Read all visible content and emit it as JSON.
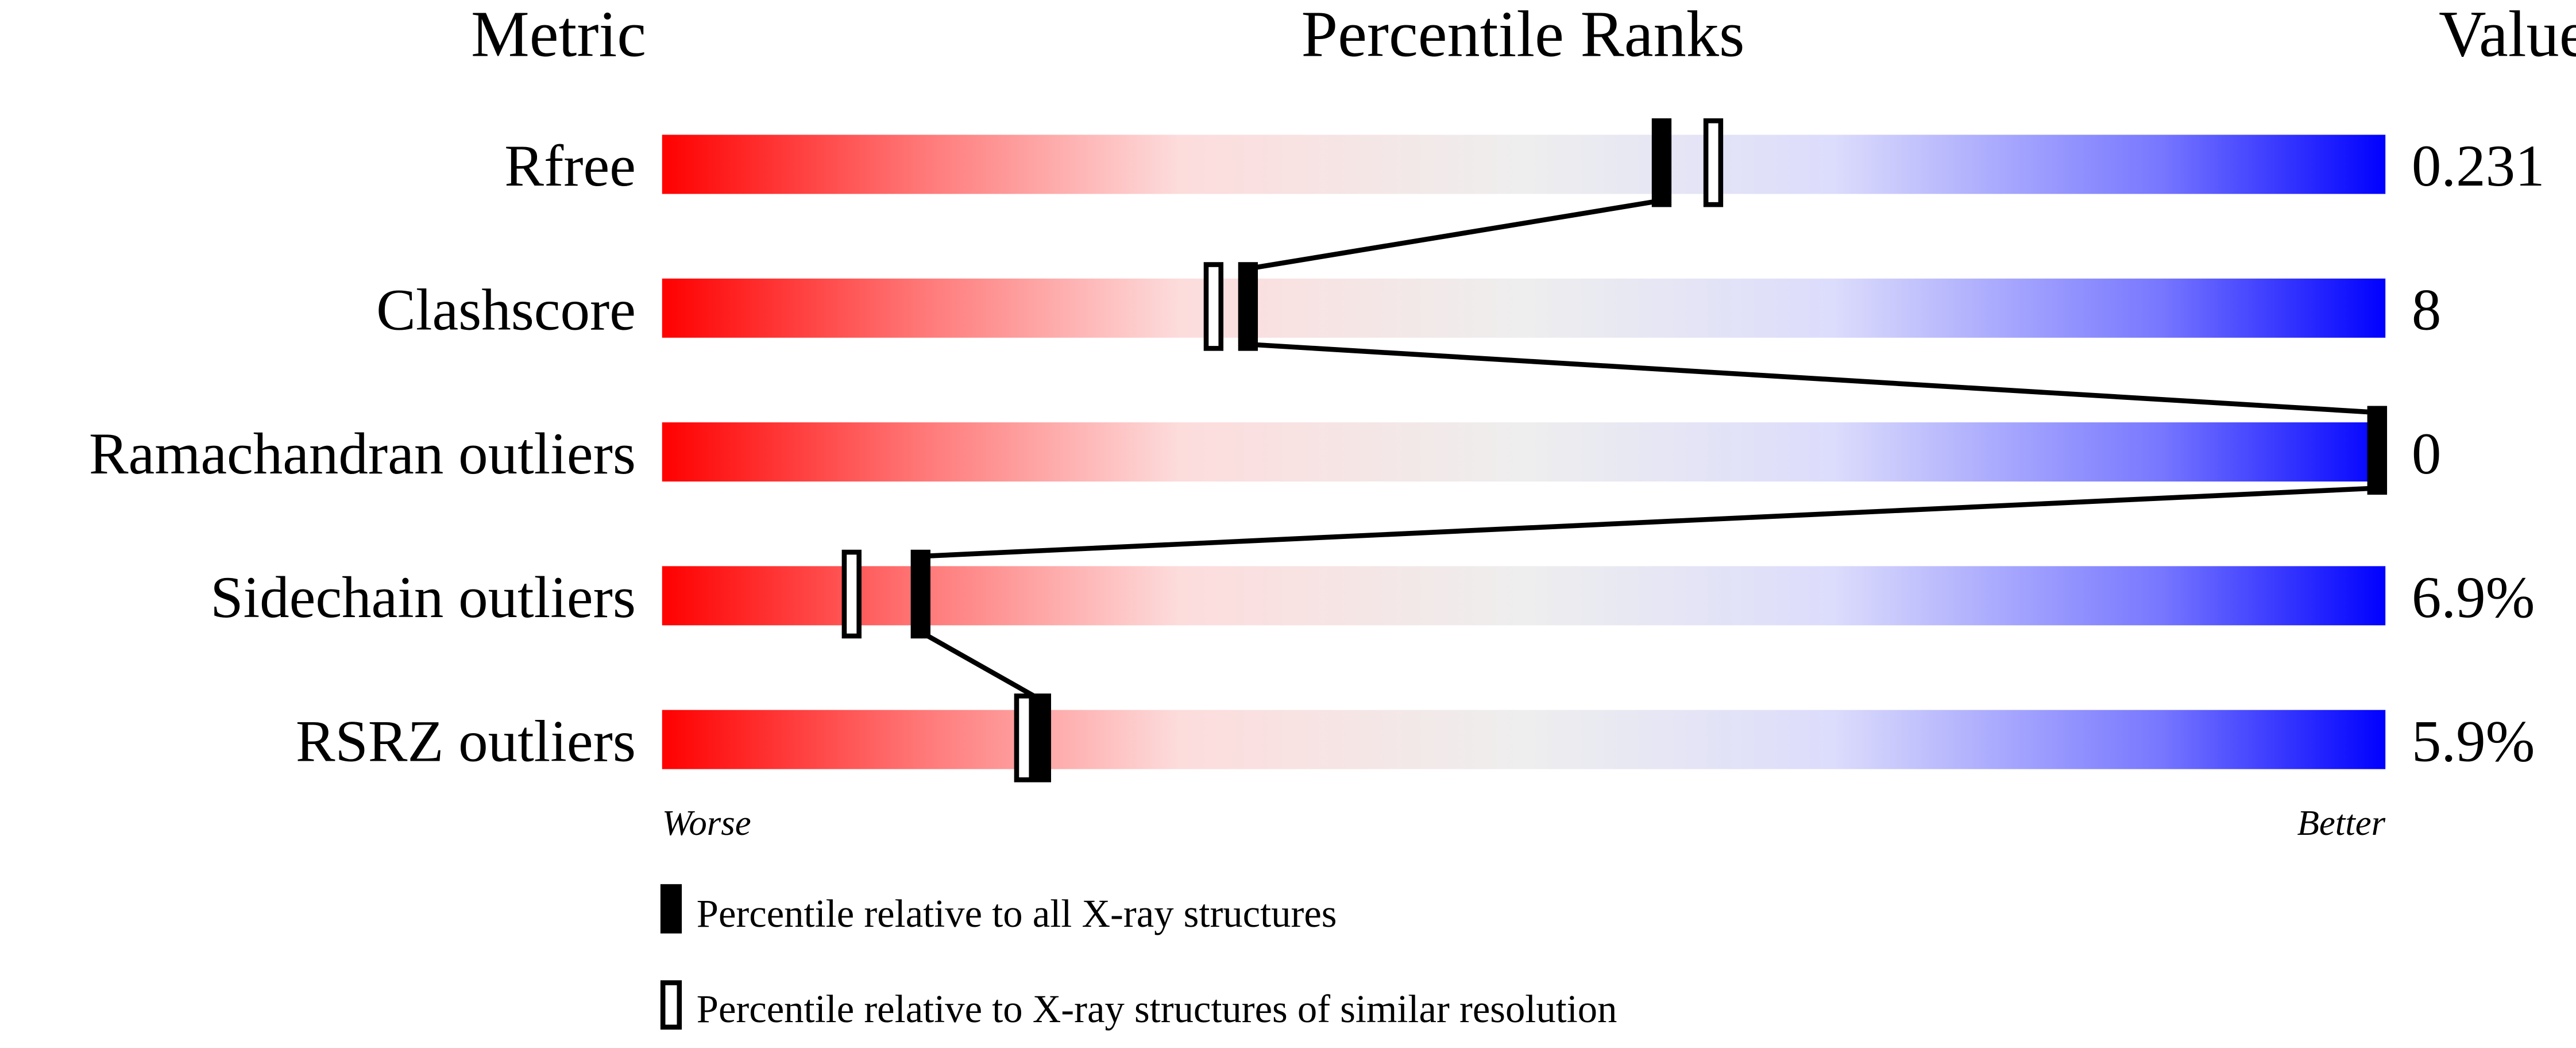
{
  "chart_data": {
    "type": "percentile-slider",
    "headers": {
      "metric": "Metric",
      "ranks": "Percentile Ranks",
      "value": "Value"
    },
    "xlim": [
      0,
      100
    ],
    "axis_labels": {
      "left": "Worse",
      "right": "Better"
    },
    "metrics": [
      {
        "name": "Rfree",
        "value": "0.231",
        "percentile_all": 58,
        "percentile_similar": 61
      },
      {
        "name": "Clashscore",
        "value": "8",
        "percentile_all": 34,
        "percentile_similar": 32
      },
      {
        "name": "Ramachandran outliers",
        "value": "0",
        "percentile_all": 100,
        "percentile_similar": 100
      },
      {
        "name": "Sidechain outliers",
        "value": "6.9%",
        "percentile_all": 15,
        "percentile_similar": 11
      },
      {
        "name": "RSRZ outliers",
        "value": "5.9%",
        "percentile_all": 22,
        "percentile_similar": 21
      }
    ],
    "legend": [
      {
        "marker": "filled",
        "label": "Percentile relative to all X-ray structures"
      },
      {
        "marker": "open",
        "label": "Percentile relative to X-ray structures of similar resolution"
      }
    ],
    "gradient_colors": [
      "#ff0000",
      "#ff7777",
      "#fddcdc",
      "#eeeeee",
      "#dcdcfc",
      "#7777ff",
      "#0000ff"
    ]
  }
}
